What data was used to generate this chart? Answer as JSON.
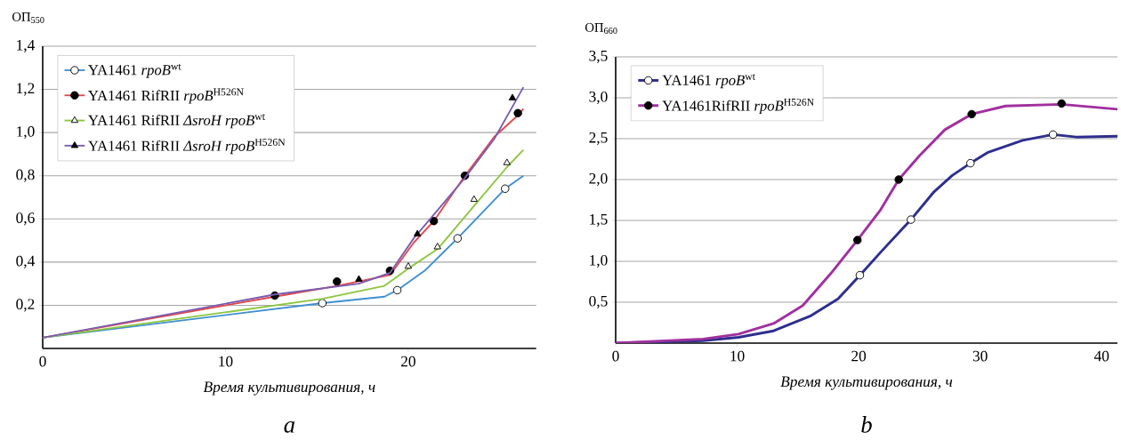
{
  "chart_data": [
    {
      "type": "line",
      "xlabel": "Время культивирования, ч",
      "ylabel": "ОП$_{550}$",
      "annotations": [
        "а"
      ],
      "xlim": [
        0,
        27
      ],
      "ylim": [
        0,
        1.4
      ],
      "xticks": [
        0,
        10,
        20
      ],
      "yticks": [
        {
          "value": 0.2,
          "label": "0,2"
        },
        {
          "value": 0.4,
          "label": "0,4"
        },
        {
          "value": 0.6,
          "label": "0,6"
        },
        {
          "value": 0.8,
          "label": "0,8"
        },
        {
          "value": 1.0,
          "label": "1,0"
        },
        {
          "value": 1.2,
          "label": "1,2"
        },
        {
          "value": 1.4,
          "label": "1,4"
        }
      ],
      "grid": "y",
      "legend": "top left",
      "series": [
        {
          "type": "line",
          "name": "YA1461 *rpoB*$^{wt}$",
          "color": "#3f8fd2",
          "x": [
            0,
            15.3,
            18.7,
            19.4,
            20.9,
            22.7,
            25.3,
            26.3
          ],
          "values": [
            0.05,
            0.21,
            0.24,
            0.27,
            0.36,
            0.51,
            0.74,
            0.8
          ]
        },
        {
          "type": "scatter",
          "marker": "circle",
          "color": "#ffffff",
          "x": [
            15.3,
            19.4,
            22.7,
            25.3
          ],
          "values": [
            0.21,
            0.27,
            0.51,
            0.74
          ]
        },
        {
          "type": "line",
          "name": "YA1461 RifRII *rpoB*$^{H526N}$",
          "color": "#e0474c",
          "x": [
            0,
            12.7,
            16.1,
            19.0,
            20.3,
            21.4,
            23.1,
            24.7,
            26.0,
            26.3
          ],
          "values": [
            0.05,
            0.24,
            0.29,
            0.34,
            0.49,
            0.59,
            0.8,
            0.98,
            1.08,
            1.11
          ]
        },
        {
          "type": "scatter",
          "marker": "circle",
          "color": "#000000",
          "x": [
            12.7,
            16.1,
            19.0,
            21.4,
            23.1,
            26.0
          ],
          "values": [
            0.245,
            0.31,
            0.36,
            0.59,
            0.8,
            1.09
          ]
        },
        {
          "type": "line",
          "name": "YA1461 RifRII *ΔsroH rpoB*$^{wt}$",
          "color": "#8cc63f",
          "x": [
            0,
            15.3,
            18.7,
            20.0,
            21.6,
            23.6,
            25.4,
            26.3
          ],
          "values": [
            0.05,
            0.23,
            0.29,
            0.37,
            0.46,
            0.66,
            0.84,
            0.92
          ]
        },
        {
          "type": "scatter",
          "marker": "triangle",
          "color": "#ffffff",
          "x": [
            20.0,
            21.6,
            23.6,
            25.4
          ],
          "values": [
            0.38,
            0.47,
            0.69,
            0.86
          ]
        },
        {
          "type": "line",
          "name": "YA1461 RifRII *ΔsroH rpoB*$^{H526N}$",
          "color": "#7a5cb0",
          "x": [
            0,
            12.7,
            17.3,
            19.0,
            20.3,
            23.1,
            24.7,
            26.3
          ],
          "values": [
            0.05,
            0.25,
            0.3,
            0.35,
            0.51,
            0.79,
            0.97,
            1.21
          ]
        },
        {
          "type": "scatter",
          "marker": "triangle",
          "color": "#000000",
          "x": [
            17.3,
            20.5,
            25.7
          ],
          "values": [
            0.32,
            0.53,
            1.16
          ]
        }
      ]
    },
    {
      "type": "line",
      "xlabel": "Время культивирования, ч",
      "ylabel": "ОП$_{660}$",
      "annotations": [
        "b"
      ],
      "xlim": [
        0,
        41.3
      ],
      "ylim": [
        0,
        3.5
      ],
      "xticks": [
        0,
        10,
        20,
        30,
        40
      ],
      "yticks": [
        {
          "value": 0.5,
          "label": "0,5"
        },
        {
          "value": 1.0,
          "label": "1,0"
        },
        {
          "value": 1.5,
          "label": "1,5"
        },
        {
          "value": 2.0,
          "label": "2,0"
        },
        {
          "value": 2.5,
          "label": "2,5"
        },
        {
          "value": 3.0,
          "label": "3,0"
        },
        {
          "value": 3.5,
          "label": "3,5"
        }
      ],
      "grid": "y",
      "legend": "top left",
      "series": [
        {
          "type": "line",
          "name": "YA1461 *rpoB*$^{wt}$",
          "color": "#2e2e8f",
          "x": [
            0,
            7.2,
            10.1,
            13,
            16,
            18.3,
            20.1,
            21.8,
            24.3,
            26.2,
            27.7,
            29.2,
            30.6,
            33.5,
            36.0,
            37.9,
            41.3
          ],
          "values": [
            0,
            0.03,
            0.07,
            0.15,
            0.33,
            0.54,
            0.83,
            1.11,
            1.51,
            1.85,
            2.05,
            2.2,
            2.33,
            2.48,
            2.55,
            2.52,
            2.53
          ]
        },
        {
          "type": "scatter",
          "marker": "circle",
          "color": "#ffffff",
          "x": [
            20.1,
            24.3,
            29.2,
            36.0
          ],
          "values": [
            0.83,
            1.51,
            2.2,
            2.55
          ]
        },
        {
          "type": "line",
          "name": "YA1461RifRII *rpoB*$^{H526N}$",
          "color": "#a0309f",
          "x": [
            0,
            7.2,
            10.1,
            13,
            15.4,
            17.7,
            19.9,
            21.8,
            23.3,
            25.0,
            27.1,
            29.3,
            32.1,
            36.7,
            41.3
          ],
          "values": [
            0,
            0.05,
            0.11,
            0.24,
            0.46,
            0.85,
            1.26,
            1.63,
            2.0,
            2.29,
            2.61,
            2.8,
            2.9,
            2.92,
            2.86
          ]
        },
        {
          "type": "scatter",
          "marker": "circle",
          "color": "#000000",
          "x": [
            19.9,
            23.3,
            29.3,
            36.7
          ],
          "values": [
            1.26,
            2.0,
            2.8,
            2.93
          ]
        }
      ]
    }
  ]
}
